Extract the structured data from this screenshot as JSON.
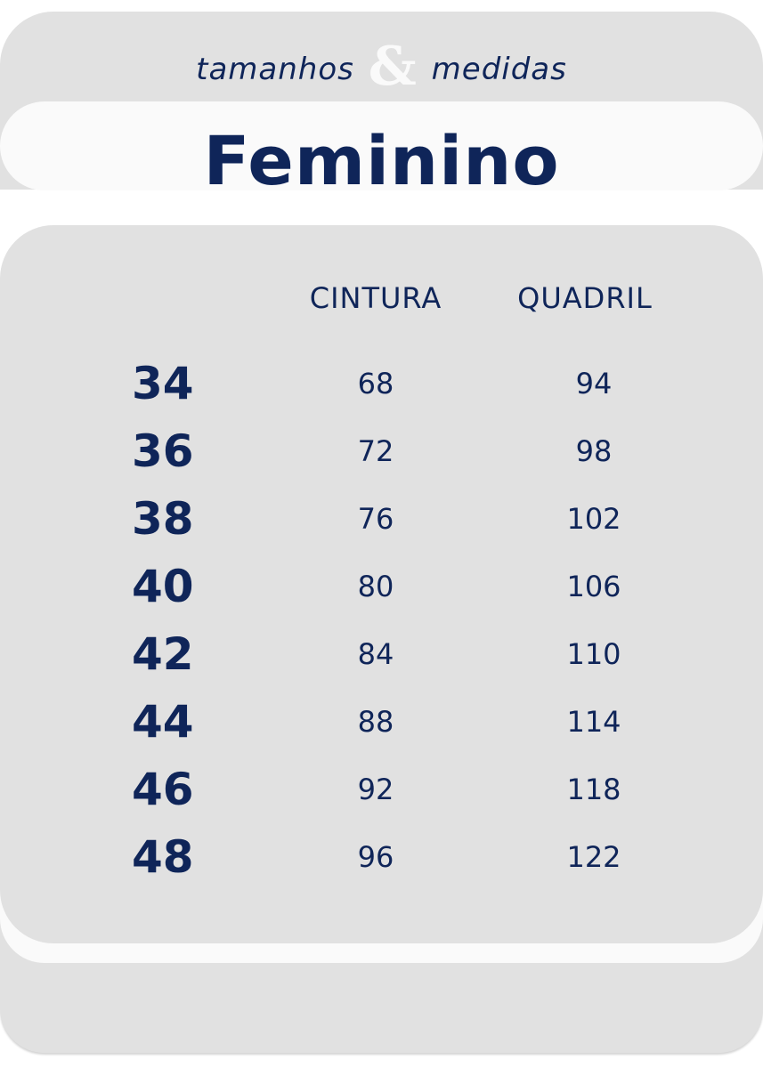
{
  "header": {
    "subtitle_left": "tamanhos",
    "subtitle_amp": "&",
    "subtitle_right": "medidas",
    "title": "Feminino"
  },
  "colors": {
    "navy": "#0f2559",
    "panel_gray": "#e1e1e1",
    "band_white": "#fafafa"
  },
  "table": {
    "columns": [
      "CINTURA",
      "QUADRIL"
    ],
    "rows": [
      {
        "size": "34",
        "cintura": "68",
        "quadril": "94"
      },
      {
        "size": "36",
        "cintura": "72",
        "quadril": "98"
      },
      {
        "size": "38",
        "cintura": "76",
        "quadril": "102"
      },
      {
        "size": "40",
        "cintura": "80",
        "quadril": "106"
      },
      {
        "size": "42",
        "cintura": "84",
        "quadril": "110"
      },
      {
        "size": "44",
        "cintura": "88",
        "quadril": "114"
      },
      {
        "size": "46",
        "cintura": "92",
        "quadril": "118"
      },
      {
        "size": "48",
        "cintura": "96",
        "quadril": "122"
      }
    ]
  }
}
